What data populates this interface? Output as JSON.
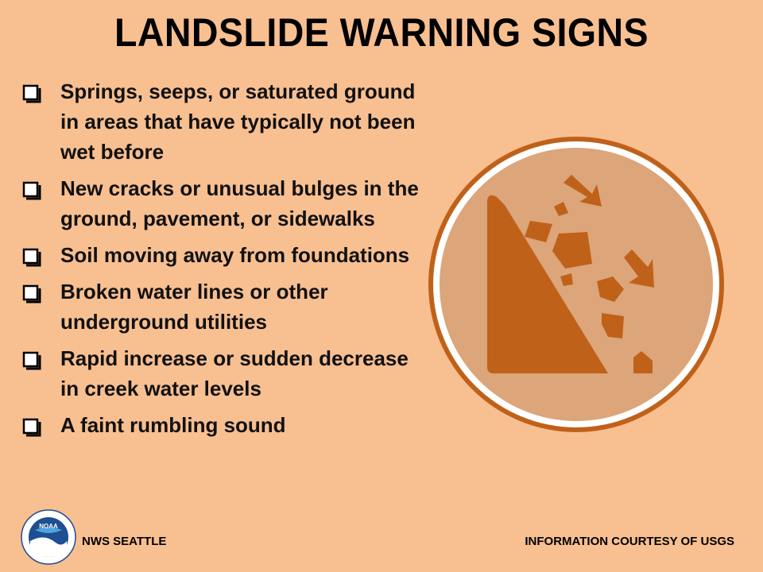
{
  "title": "LANDSLIDE WARNING SIGNS",
  "signs": [
    "Springs, seeps, or saturated ground in areas that have typically not been wet before",
    "New cracks or unusual bulges in the ground, pavement, or sidewalks",
    "Soil moving away from foundations",
    "Broken water lines or other underground utilities",
    "Rapid increase or sudden decrease in creek water levels",
    "A faint rumbling sound"
  ],
  "illustration_icon": "landslide-icon",
  "logo_icon": "noaa-logo",
  "logo_text": "NOAA",
  "footer": {
    "left": "NWS SEATTLE",
    "right": "INFORMATION COURTESY OF USGS"
  },
  "colors": {
    "background": "#f8bf91",
    "circle_fill": "#dca57a",
    "circle_ring": "#c0611a",
    "slope": "#c0611a"
  }
}
